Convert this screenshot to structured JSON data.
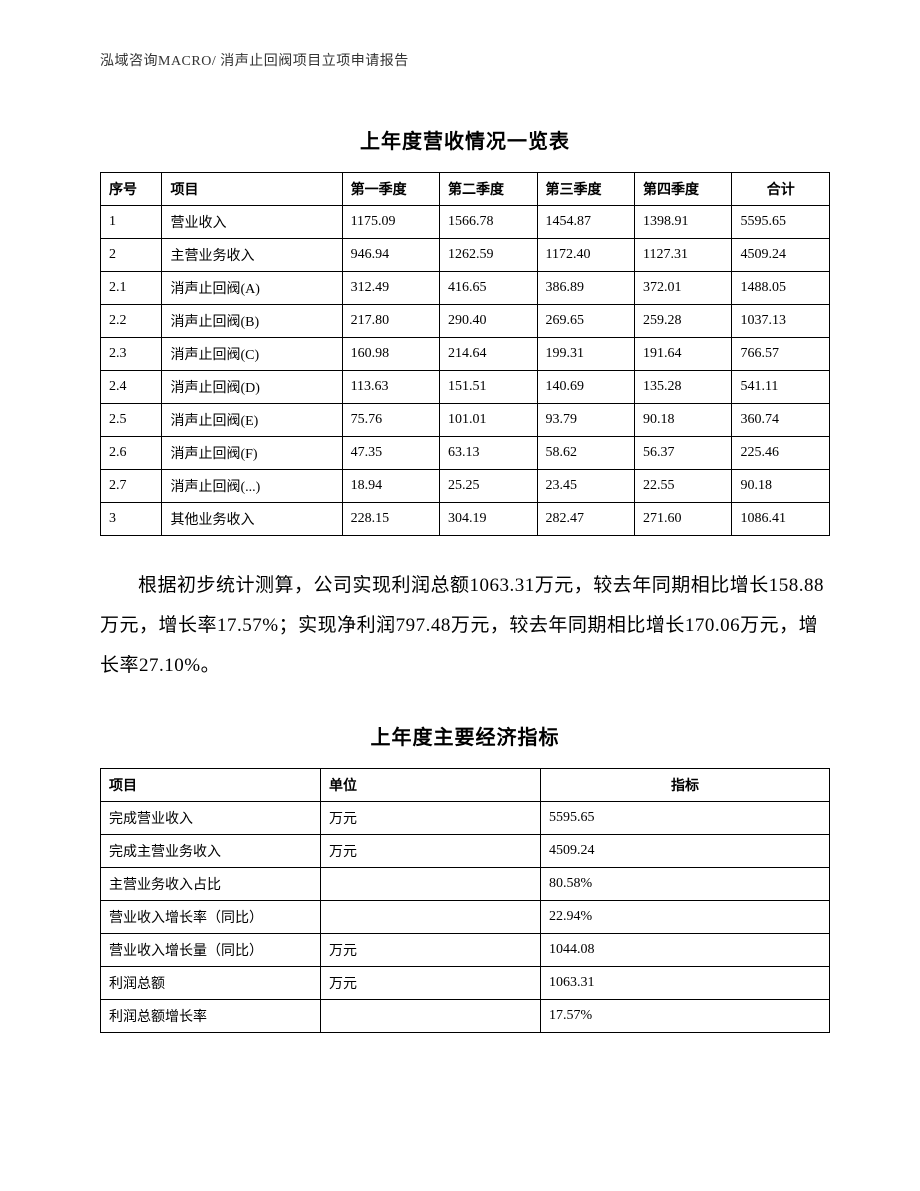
{
  "header": "泓域咨询MACRO/    消声止回阀项目立项申请报告",
  "table1": {
    "title": "上年度营收情况一览表",
    "columns": [
      "序号",
      "项目",
      "第一季度",
      "第二季度",
      "第三季度",
      "第四季度",
      "合计"
    ],
    "rows": [
      [
        "1",
        "营业收入",
        "1175.09",
        "1566.78",
        "1454.87",
        "1398.91",
        "5595.65"
      ],
      [
        "2",
        "主营业务收入",
        "946.94",
        "1262.59",
        "1172.40",
        "1127.31",
        "4509.24"
      ],
      [
        "2.1",
        "消声止回阀(A)",
        "312.49",
        "416.65",
        "386.89",
        "372.01",
        "1488.05"
      ],
      [
        "2.2",
        "消声止回阀(B)",
        "217.80",
        "290.40",
        "269.65",
        "259.28",
        "1037.13"
      ],
      [
        "2.3",
        "消声止回阀(C)",
        "160.98",
        "214.64",
        "199.31",
        "191.64",
        "766.57"
      ],
      [
        "2.4",
        "消声止回阀(D)",
        "113.63",
        "151.51",
        "140.69",
        "135.28",
        "541.11"
      ],
      [
        "2.5",
        "消声止回阀(E)",
        "75.76",
        "101.01",
        "93.79",
        "90.18",
        "360.74"
      ],
      [
        "2.6",
        "消声止回阀(F)",
        "47.35",
        "63.13",
        "58.62",
        "56.37",
        "225.46"
      ],
      [
        "2.7",
        "消声止回阀(...)",
        "18.94",
        "25.25",
        "23.45",
        "22.55",
        "90.18"
      ],
      [
        "3",
        "其他业务收入",
        "228.15",
        "304.19",
        "282.47",
        "271.60",
        "1086.41"
      ]
    ]
  },
  "paragraph": "根据初步统计测算，公司实现利润总额1063.31万元，较去年同期相比增长158.88万元，增长率17.57%；实现净利润797.48万元，较去年同期相比增长170.06万元，增长率27.10%。",
  "table2": {
    "title": "上年度主要经济指标",
    "columns": [
      "项目",
      "单位",
      "指标"
    ],
    "rows": [
      [
        "完成营业收入",
        "万元",
        "5595.65"
      ],
      [
        "完成主营业务收入",
        "万元",
        "4509.24"
      ],
      [
        "主营业务收入占比",
        "",
        "80.58%"
      ],
      [
        "营业收入增长率（同比）",
        "",
        "22.94%"
      ],
      [
        "营业收入增长量（同比）",
        "万元",
        "1044.08"
      ],
      [
        "利润总额",
        "万元",
        "1063.31"
      ],
      [
        "利润总额增长率",
        "",
        "17.57%"
      ]
    ]
  },
  "colors": {
    "text": "#000000",
    "border": "#000000",
    "background": "#ffffff"
  },
  "typography": {
    "header_fontsize": 14,
    "title_fontsize": 20,
    "table_fontsize": 14,
    "paragraph_fontsize": 19
  }
}
